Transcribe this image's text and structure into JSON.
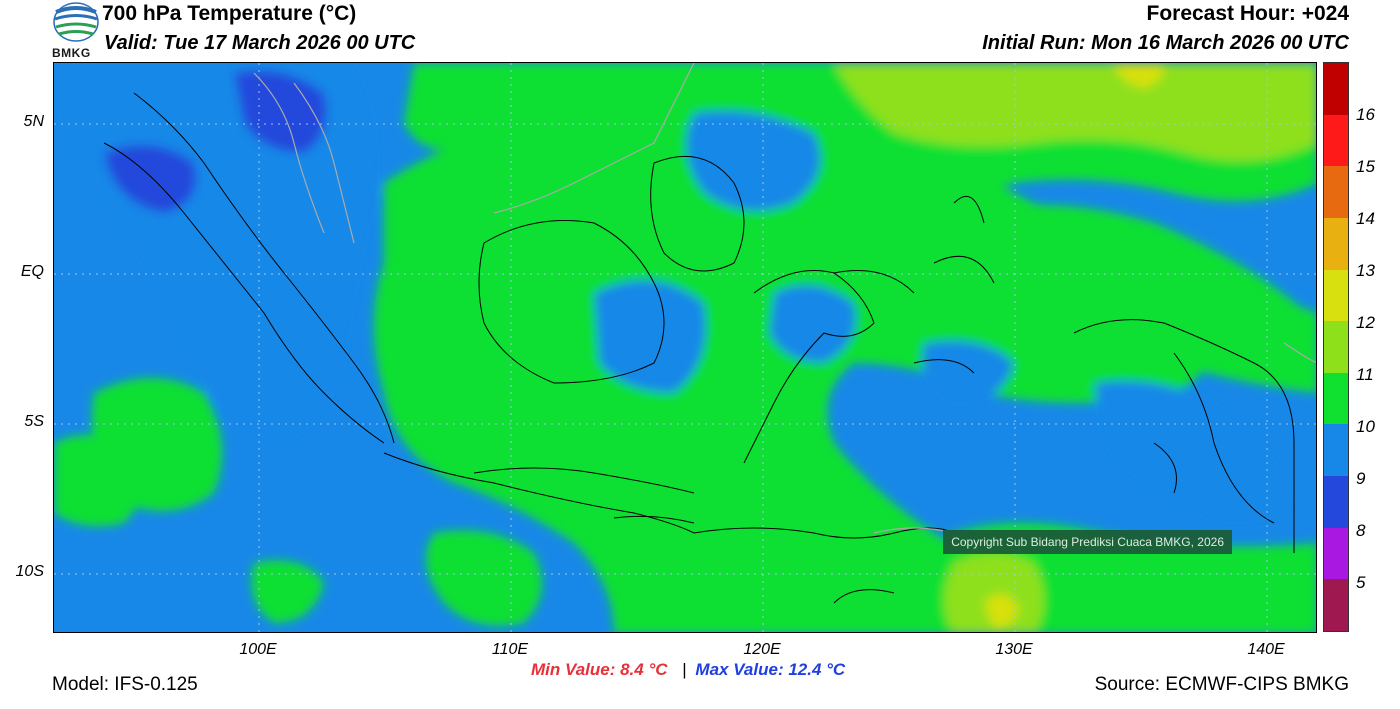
{
  "header": {
    "title": "700 hPa Temperature (°C)",
    "valid": "Valid: Tue 17 March 2026 00 UTC",
    "forecast_hour": "Forecast Hour: +024",
    "initial_run": "Initial Run: Mon 16 March 2026 00 UTC",
    "logo_text": "BMKG"
  },
  "map": {
    "lat_labels": [
      "5N",
      "EQ",
      "5S",
      "10S"
    ],
    "lon_labels": [
      "100E",
      "110E",
      "120E",
      "130E",
      "140E"
    ],
    "copyright": "Copyright Sub Bidang Prediksi Cuaca BMKG, 2026"
  },
  "colorbar": {
    "labels": [
      "16",
      "15",
      "14",
      "13",
      "12",
      "11",
      "10",
      "9",
      "8",
      "5"
    ],
    "colors": [
      "#c00000",
      "#ff1a1a",
      "#e86a10",
      "#e8b010",
      "#d8e010",
      "#8ee01a",
      "#10e030",
      "#1888e8",
      "#2448dc",
      "#a818e0",
      "#a01850"
    ]
  },
  "footer": {
    "min_value": "Min Value: 8.4 °C",
    "separator": "|",
    "max_value": "Max Value: 12.4 °C",
    "model": "Model: IFS-0.125",
    "source": "Source: ECMWF-CIPS BMKG"
  }
}
